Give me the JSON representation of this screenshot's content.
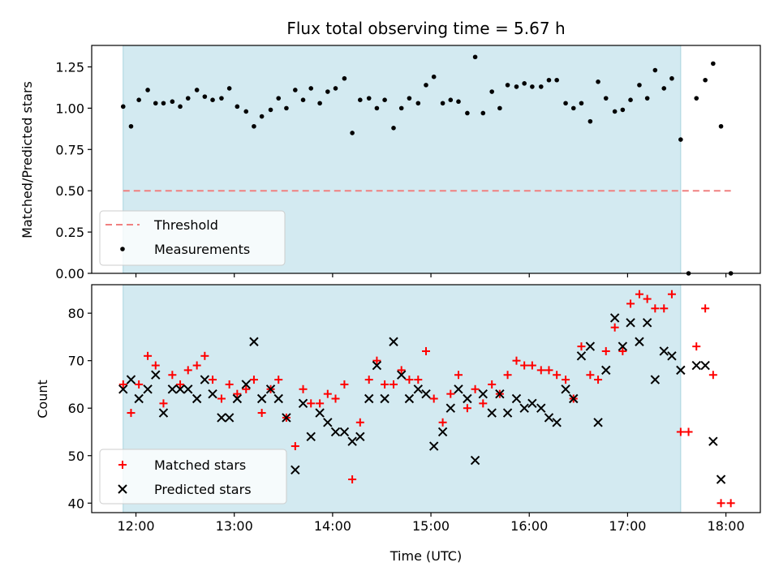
{
  "figure": {
    "title": "Flux total observing time = 5.67 h",
    "xlabel": "Time (UTC)",
    "xticks": [
      {
        "hour": 12,
        "label": "12:00"
      },
      {
        "hour": 13,
        "label": "13:00"
      },
      {
        "hour": 14,
        "label": "14:00"
      },
      {
        "hour": 15,
        "label": "15:00"
      },
      {
        "hour": 16,
        "label": "16:00"
      },
      {
        "hour": 17,
        "label": "17:00"
      },
      {
        "hour": 18,
        "label": "18:00"
      }
    ],
    "xlim": [
      11.55,
      18.35
    ],
    "shaded_span": [
      11.87,
      17.54
    ],
    "shade_color": "#d3eaf1",
    "shade_edge": "#a9d4df"
  },
  "chart_data": [
    {
      "type": "scatter",
      "ylabel": "Matched/Predicted stars",
      "ylim": [
        0,
        1.38
      ],
      "yticks": [
        "0.00",
        "0.25",
        "0.50",
        "0.75",
        "1.00",
        "1.25"
      ],
      "ytick_values": [
        0,
        0.25,
        0.5,
        0.75,
        1.0,
        1.25
      ],
      "legend_position": "lower-left",
      "threshold": {
        "name": "Threshold",
        "value": 0.5,
        "x_range": [
          11.87,
          18.05
        ],
        "color": "#f08080"
      },
      "series": [
        {
          "name": "Measurements",
          "color": "#000000",
          "points": [
            [
              11.87,
              1.01
            ],
            [
              11.95,
              0.89
            ],
            [
              12.03,
              1.05
            ],
            [
              12.12,
              1.11
            ],
            [
              12.2,
              1.03
            ],
            [
              12.28,
              1.03
            ],
            [
              12.37,
              1.04
            ],
            [
              12.45,
              1.01
            ],
            [
              12.53,
              1.06
            ],
            [
              12.62,
              1.11
            ],
            [
              12.7,
              1.07
            ],
            [
              12.78,
              1.05
            ],
            [
              12.87,
              1.06
            ],
            [
              12.95,
              1.12
            ],
            [
              13.03,
              1.01
            ],
            [
              13.12,
              0.98
            ],
            [
              13.2,
              0.89
            ],
            [
              13.28,
              0.95
            ],
            [
              13.37,
              0.99
            ],
            [
              13.45,
              1.06
            ],
            [
              13.53,
              1.0
            ],
            [
              13.62,
              1.11
            ],
            [
              13.7,
              1.05
            ],
            [
              13.78,
              1.12
            ],
            [
              13.87,
              1.03
            ],
            [
              13.95,
              1.1
            ],
            [
              14.03,
              1.12
            ],
            [
              14.12,
              1.18
            ],
            [
              14.2,
              0.85
            ],
            [
              14.28,
              1.05
            ],
            [
              14.37,
              1.06
            ],
            [
              14.45,
              1.0
            ],
            [
              14.53,
              1.05
            ],
            [
              14.62,
              0.88
            ],
            [
              14.7,
              1.0
            ],
            [
              14.78,
              1.06
            ],
            [
              14.87,
              1.03
            ],
            [
              14.95,
              1.14
            ],
            [
              15.03,
              1.19
            ],
            [
              15.12,
              1.03
            ],
            [
              15.2,
              1.05
            ],
            [
              15.28,
              1.04
            ],
            [
              15.37,
              0.97
            ],
            [
              15.45,
              1.31
            ],
            [
              15.53,
              0.97
            ],
            [
              15.62,
              1.1
            ],
            [
              15.7,
              1.0
            ],
            [
              15.78,
              1.14
            ],
            [
              15.87,
              1.13
            ],
            [
              15.95,
              1.15
            ],
            [
              16.03,
              1.13
            ],
            [
              16.12,
              1.13
            ],
            [
              16.2,
              1.17
            ],
            [
              16.28,
              1.17
            ],
            [
              16.37,
              1.03
            ],
            [
              16.45,
              1.0
            ],
            [
              16.53,
              1.03
            ],
            [
              16.62,
              0.92
            ],
            [
              16.7,
              1.16
            ],
            [
              16.78,
              1.06
            ],
            [
              16.87,
              0.98
            ],
            [
              16.95,
              0.99
            ],
            [
              17.03,
              1.05
            ],
            [
              17.12,
              1.14
            ],
            [
              17.2,
              1.06
            ],
            [
              17.28,
              1.23
            ],
            [
              17.37,
              1.12
            ],
            [
              17.45,
              1.18
            ],
            [
              17.54,
              0.81
            ],
            [
              17.62,
              0.0
            ],
            [
              17.7,
              1.06
            ],
            [
              17.79,
              1.17
            ],
            [
              17.87,
              1.27
            ],
            [
              17.95,
              0.89
            ],
            [
              18.05,
              0.0
            ]
          ]
        }
      ]
    },
    {
      "type": "scatter",
      "ylabel": "Count",
      "ylim": [
        38,
        86
      ],
      "yticks": [
        "40",
        "50",
        "60",
        "70",
        "80"
      ],
      "ytick_values": [
        40,
        50,
        60,
        70,
        80
      ],
      "legend_position": "lower-left",
      "series": [
        {
          "name": "Matched stars",
          "color": "#ff0000",
          "marker": "plus",
          "points": [
            [
              11.87,
              65
            ],
            [
              11.95,
              59
            ],
            [
              12.03,
              65
            ],
            [
              12.12,
              71
            ],
            [
              12.2,
              69
            ],
            [
              12.28,
              61
            ],
            [
              12.37,
              67
            ],
            [
              12.45,
              65
            ],
            [
              12.53,
              68
            ],
            [
              12.62,
              69
            ],
            [
              12.7,
              71
            ],
            [
              12.78,
              66
            ],
            [
              12.87,
              62
            ],
            [
              12.95,
              65
            ],
            [
              13.03,
              63
            ],
            [
              13.12,
              64
            ],
            [
              13.2,
              66
            ],
            [
              13.28,
              59
            ],
            [
              13.37,
              64
            ],
            [
              13.45,
              66
            ],
            [
              13.53,
              58
            ],
            [
              13.62,
              52
            ],
            [
              13.7,
              64
            ],
            [
              13.78,
              61
            ],
            [
              13.87,
              61
            ],
            [
              13.95,
              63
            ],
            [
              14.03,
              62
            ],
            [
              14.12,
              65
            ],
            [
              14.2,
              45
            ],
            [
              14.28,
              57
            ],
            [
              14.37,
              66
            ],
            [
              14.45,
              70
            ],
            [
              14.53,
              65
            ],
            [
              14.62,
              65
            ],
            [
              14.7,
              68
            ],
            [
              14.78,
              66
            ],
            [
              14.87,
              66
            ],
            [
              14.95,
              72
            ],
            [
              15.03,
              62
            ],
            [
              15.12,
              57
            ],
            [
              15.2,
              63
            ],
            [
              15.28,
              67
            ],
            [
              15.37,
              60
            ],
            [
              15.45,
              64
            ],
            [
              15.53,
              61
            ],
            [
              15.62,
              65
            ],
            [
              15.7,
              63
            ],
            [
              15.78,
              67
            ],
            [
              15.87,
              70
            ],
            [
              15.95,
              69
            ],
            [
              16.03,
              69
            ],
            [
              16.12,
              68
            ],
            [
              16.2,
              68
            ],
            [
              16.28,
              67
            ],
            [
              16.37,
              66
            ],
            [
              16.45,
              62
            ],
            [
              16.53,
              73
            ],
            [
              16.62,
              67
            ],
            [
              16.7,
              66
            ],
            [
              16.78,
              72
            ],
            [
              16.87,
              77
            ],
            [
              16.95,
              72
            ],
            [
              17.03,
              82
            ],
            [
              17.12,
              84
            ],
            [
              17.2,
              83
            ],
            [
              17.28,
              81
            ],
            [
              17.37,
              81
            ],
            [
              17.45,
              84
            ],
            [
              17.54,
              55
            ],
            [
              17.62,
              55
            ],
            [
              17.7,
              73
            ],
            [
              17.79,
              81
            ],
            [
              17.87,
              67
            ],
            [
              17.95,
              40
            ],
            [
              18.05,
              40
            ]
          ]
        },
        {
          "name": "Predicted stars",
          "color": "#000000",
          "marker": "x",
          "points": [
            [
              11.87,
              64
            ],
            [
              11.95,
              66
            ],
            [
              12.03,
              62
            ],
            [
              12.12,
              64
            ],
            [
              12.2,
              67
            ],
            [
              12.28,
              59
            ],
            [
              12.37,
              64
            ],
            [
              12.45,
              64
            ],
            [
              12.53,
              64
            ],
            [
              12.62,
              62
            ],
            [
              12.7,
              66
            ],
            [
              12.78,
              63
            ],
            [
              12.87,
              58
            ],
            [
              12.95,
              58
            ],
            [
              13.03,
              62
            ],
            [
              13.12,
              65
            ],
            [
              13.2,
              74
            ],
            [
              13.28,
              62
            ],
            [
              13.37,
              64
            ],
            [
              13.45,
              62
            ],
            [
              13.53,
              58
            ],
            [
              13.62,
              47
            ],
            [
              13.7,
              61
            ],
            [
              13.78,
              54
            ],
            [
              13.87,
              59
            ],
            [
              13.95,
              57
            ],
            [
              14.03,
              55
            ],
            [
              14.12,
              55
            ],
            [
              14.2,
              53
            ],
            [
              14.28,
              54
            ],
            [
              14.37,
              62
            ],
            [
              14.45,
              69
            ],
            [
              14.53,
              62
            ],
            [
              14.62,
              74
            ],
            [
              14.7,
              67
            ],
            [
              14.78,
              62
            ],
            [
              14.87,
              64
            ],
            [
              14.95,
              63
            ],
            [
              15.03,
              52
            ],
            [
              15.12,
              55
            ],
            [
              15.2,
              60
            ],
            [
              15.28,
              64
            ],
            [
              15.37,
              62
            ],
            [
              15.45,
              49
            ],
            [
              15.53,
              63
            ],
            [
              15.62,
              59
            ],
            [
              15.7,
              63
            ],
            [
              15.78,
              59
            ],
            [
              15.87,
              62
            ],
            [
              15.95,
              60
            ],
            [
              16.03,
              61
            ],
            [
              16.12,
              60
            ],
            [
              16.2,
              58
            ],
            [
              16.28,
              57
            ],
            [
              16.37,
              64
            ],
            [
              16.45,
              62
            ],
            [
              16.53,
              71
            ],
            [
              16.62,
              73
            ],
            [
              16.7,
              57
            ],
            [
              16.78,
              68
            ],
            [
              16.87,
              79
            ],
            [
              16.95,
              73
            ],
            [
              17.03,
              78
            ],
            [
              17.12,
              74
            ],
            [
              17.2,
              78
            ],
            [
              17.28,
              66
            ],
            [
              17.37,
              72
            ],
            [
              17.45,
              71
            ],
            [
              17.54,
              68
            ],
            [
              17.7,
              69
            ],
            [
              17.79,
              69
            ],
            [
              17.87,
              53
            ],
            [
              17.95,
              45
            ]
          ]
        }
      ]
    }
  ]
}
